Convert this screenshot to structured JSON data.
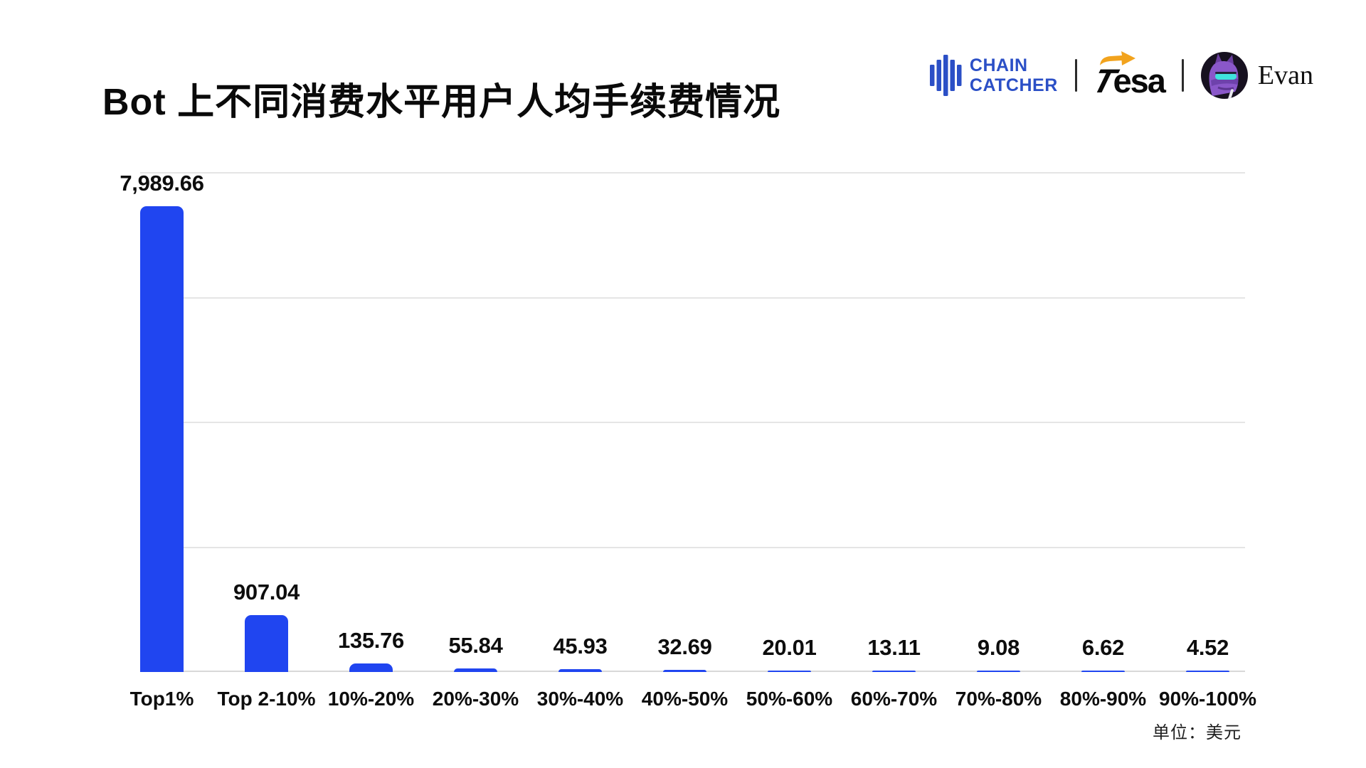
{
  "header": {
    "title": "Bot 上不同消费水平用户人均手续费情况",
    "logos": {
      "chaincatcher": {
        "line1": "CHAIN",
        "line2": "CATCHER",
        "color": "#2b4fc6"
      },
      "tesa": {
        "t": "T",
        "rest": "esa",
        "arrow_color": "#f2a31d",
        "text_color": "#0a0a0a"
      },
      "evan": {
        "name": "Evan"
      }
    }
  },
  "chart_data": {
    "type": "bar",
    "title": "Bot 上不同消费水平用户人均手续费情况",
    "categories": [
      "Top1%",
      "Top 2-10%",
      "10%-20%",
      "20%-30%",
      "30%-40%",
      "40%-50%",
      "50%-60%",
      "60%-70%",
      "70%-80%",
      "80%-90%",
      "90%-100%"
    ],
    "values": [
      7989.66,
      907.04,
      135.76,
      55.84,
      45.93,
      32.69,
      20.01,
      13.11,
      9.08,
      6.62,
      4.52
    ],
    "value_labels": [
      "7,989.66",
      "907.04",
      "135.76",
      "55.84",
      "45.93",
      "32.69",
      "20.01",
      "13.11",
      "9.08",
      "6.62",
      "4.52"
    ],
    "xlabel": "",
    "ylabel": "",
    "ylim": [
      0,
      8000
    ],
    "gridline_interval": 2000,
    "grid": "horizontal-only",
    "y_axis_tick_labels": "none",
    "legend": "none",
    "bar_color": "#2045f0",
    "unit_note": "单位：美元"
  }
}
